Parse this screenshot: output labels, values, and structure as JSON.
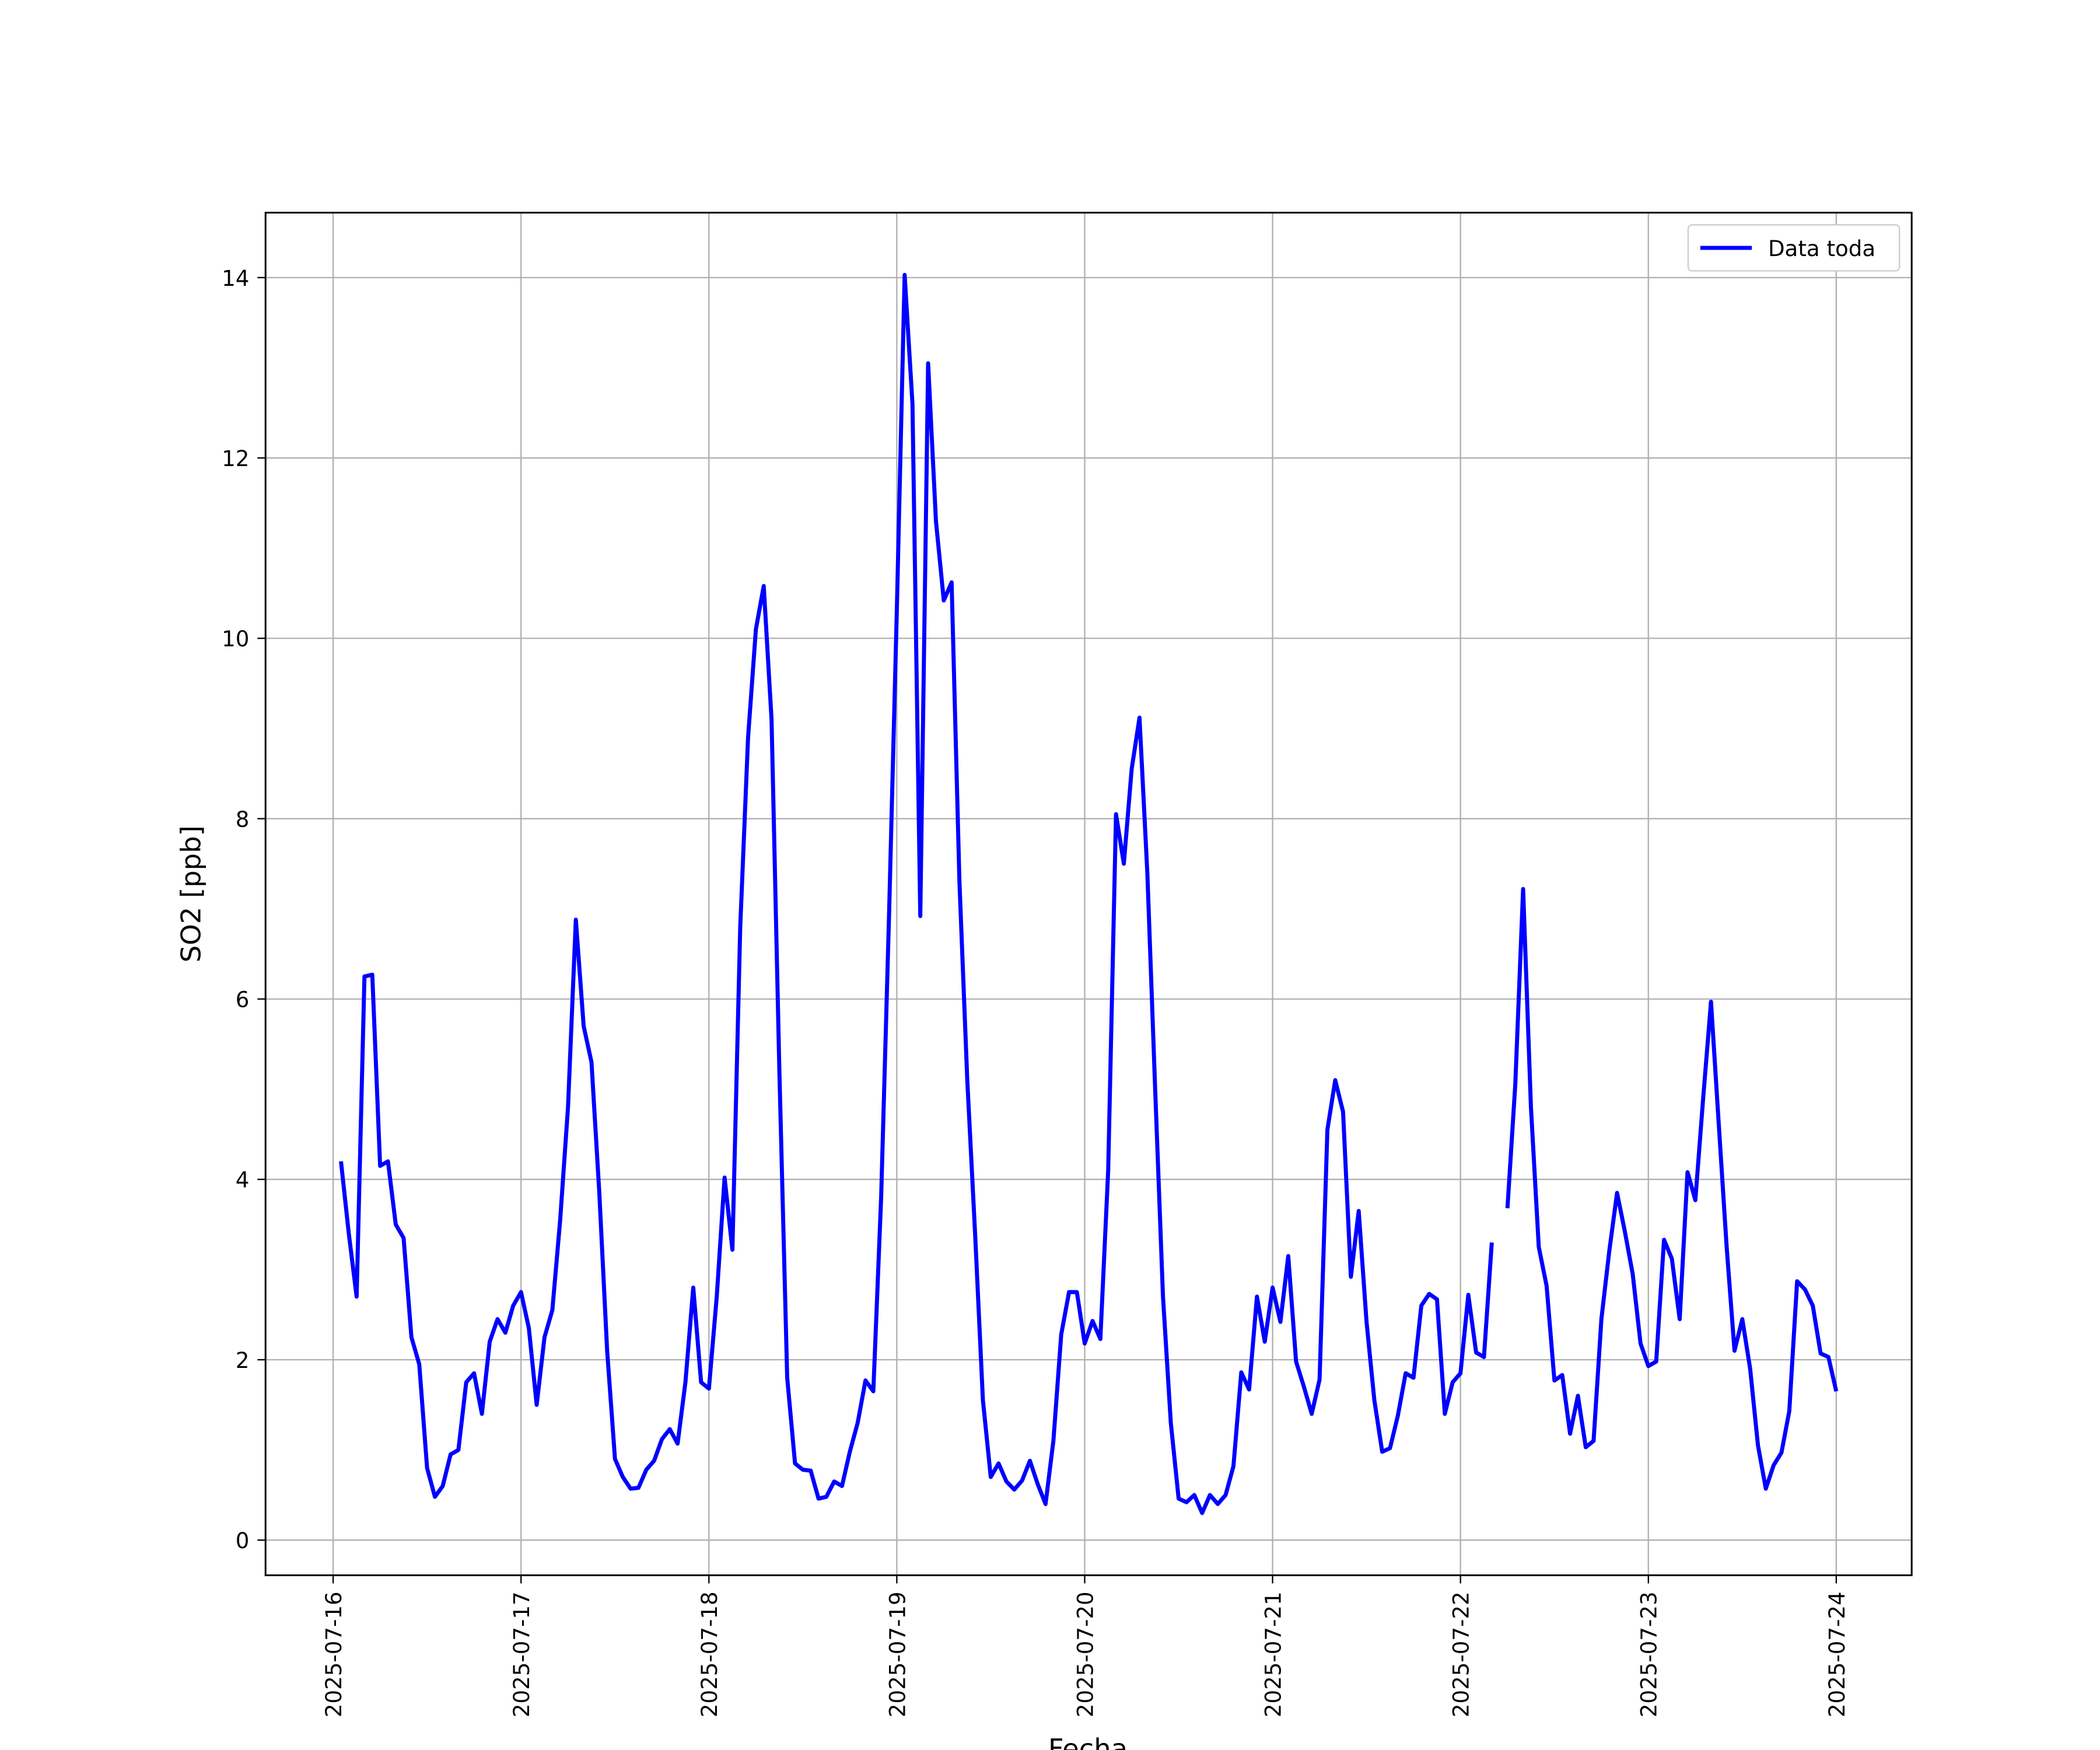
{
  "chart_data": {
    "type": "line",
    "x_label": "Fecha",
    "y_label": "SO2 [ppb]",
    "legend": "upper right",
    "grid": true,
    "xlim": [
      "2025-07-15 15:22",
      "2025-07-24 09:38"
    ],
    "xticks": [
      "2025-07-16",
      "2025-07-17",
      "2025-07-18",
      "2025-07-19",
      "2025-07-20",
      "2025-07-21",
      "2025-07-22",
      "2025-07-23",
      "2025-07-24"
    ],
    "ylim": [
      -0.39,
      14.72
    ],
    "yticks": [
      0,
      2,
      4,
      6,
      8,
      10,
      12,
      14
    ],
    "x": [
      "2025-07-16 01:00",
      "2025-07-16 02:00",
      "2025-07-16 03:00",
      "2025-07-16 04:00",
      "2025-07-16 05:00",
      "2025-07-16 06:00",
      "2025-07-16 07:00",
      "2025-07-16 08:00",
      "2025-07-16 09:00",
      "2025-07-16 10:00",
      "2025-07-16 11:00",
      "2025-07-16 12:00",
      "2025-07-16 13:00",
      "2025-07-16 14:00",
      "2025-07-16 15:00",
      "2025-07-16 16:00",
      "2025-07-16 17:00",
      "2025-07-16 18:00",
      "2025-07-16 19:00",
      "2025-07-16 20:00",
      "2025-07-16 21:00",
      "2025-07-16 22:00",
      "2025-07-16 23:00",
      "2025-07-17 00:00",
      "2025-07-17 01:00",
      "2025-07-17 02:00",
      "2025-07-17 03:00",
      "2025-07-17 04:00",
      "2025-07-17 05:00",
      "2025-07-17 06:00",
      "2025-07-17 07:00",
      "2025-07-17 08:00",
      "2025-07-17 09:00",
      "2025-07-17 10:00",
      "2025-07-17 11:00",
      "2025-07-17 12:00",
      "2025-07-17 13:00",
      "2025-07-17 14:00",
      "2025-07-17 15:00",
      "2025-07-17 16:00",
      "2025-07-17 17:00",
      "2025-07-17 18:00",
      "2025-07-17 19:00",
      "2025-07-17 20:00",
      "2025-07-17 21:00",
      "2025-07-17 22:00",
      "2025-07-17 23:00",
      "2025-07-18 00:00",
      "2025-07-18 01:00",
      "2025-07-18 02:00",
      "2025-07-18 03:00",
      "2025-07-18 04:00",
      "2025-07-18 05:00",
      "2025-07-18 06:00",
      "2025-07-18 07:00",
      "2025-07-18 08:00",
      "2025-07-18 09:00",
      "2025-07-18 10:00",
      "2025-07-18 11:00",
      "2025-07-18 12:00",
      "2025-07-18 13:00",
      "2025-07-18 14:00",
      "2025-07-18 15:00",
      "2025-07-18 16:00",
      "2025-07-18 17:00",
      "2025-07-18 18:00",
      "2025-07-18 19:00",
      "2025-07-18 20:00",
      "2025-07-18 21:00",
      "2025-07-18 22:00",
      "2025-07-18 23:00",
      "2025-07-19 00:00",
      "2025-07-19 01:00",
      "2025-07-19 02:00",
      "2025-07-19 03:00",
      "2025-07-19 04:00",
      "2025-07-19 05:00",
      "2025-07-19 06:00",
      "2025-07-19 07:00",
      "2025-07-19 08:00",
      "2025-07-19 09:00",
      "2025-07-19 10:00",
      "2025-07-19 11:00",
      "2025-07-19 12:00",
      "2025-07-19 13:00",
      "2025-07-19 14:00",
      "2025-07-19 15:00",
      "2025-07-19 16:00",
      "2025-07-19 17:00",
      "2025-07-19 18:00",
      "2025-07-19 19:00",
      "2025-07-19 20:00",
      "2025-07-19 21:00",
      "2025-07-19 22:00",
      "2025-07-19 23:00",
      "2025-07-20 00:00",
      "2025-07-20 01:00",
      "2025-07-20 02:00",
      "2025-07-20 03:00",
      "2025-07-20 04:00",
      "2025-07-20 05:00",
      "2025-07-20 06:00",
      "2025-07-20 07:00",
      "2025-07-20 08:00",
      "2025-07-20 09:00",
      "2025-07-20 10:00",
      "2025-07-20 11:00",
      "2025-07-20 12:00",
      "2025-07-20 13:00",
      "2025-07-20 14:00",
      "2025-07-20 15:00",
      "2025-07-20 16:00",
      "2025-07-20 17:00",
      "2025-07-20 18:00",
      "2025-07-20 19:00",
      "2025-07-20 20:00",
      "2025-07-20 21:00",
      "2025-07-20 22:00",
      "2025-07-20 23:00",
      "2025-07-21 00:00",
      "2025-07-21 01:00",
      "2025-07-21 02:00",
      "2025-07-21 03:00",
      "2025-07-21 04:00",
      "2025-07-21 05:00",
      "2025-07-21 06:00",
      "2025-07-21 07:00",
      "2025-07-21 08:00",
      "2025-07-21 09:00",
      "2025-07-21 10:00",
      "2025-07-21 11:00",
      "2025-07-21 12:00",
      "2025-07-21 13:00",
      "2025-07-21 14:00",
      "2025-07-21 15:00",
      "2025-07-21 16:00",
      "2025-07-21 17:00",
      "2025-07-21 18:00",
      "2025-07-21 19:00",
      "2025-07-21 20:00",
      "2025-07-21 21:00",
      "2025-07-21 22:00",
      "2025-07-21 23:00",
      "2025-07-22 00:00",
      "2025-07-22 01:00",
      "2025-07-22 02:00",
      "2025-07-22 03:00",
      "2025-07-22 04:00",
      "2025-07-22 05:00",
      "2025-07-22 06:00",
      "2025-07-22 07:00",
      "2025-07-22 08:00",
      "2025-07-22 09:00",
      "2025-07-22 10:00",
      "2025-07-22 11:00",
      "2025-07-22 12:00",
      "2025-07-22 13:00",
      "2025-07-22 14:00",
      "2025-07-22 15:00",
      "2025-07-22 16:00",
      "2025-07-22 17:00",
      "2025-07-22 18:00",
      "2025-07-22 19:00",
      "2025-07-22 20:00",
      "2025-07-22 21:00",
      "2025-07-22 22:00",
      "2025-07-22 23:00",
      "2025-07-23 00:00",
      "2025-07-23 01:00",
      "2025-07-23 02:00",
      "2025-07-23 03:00",
      "2025-07-23 04:00",
      "2025-07-23 05:00",
      "2025-07-23 06:00",
      "2025-07-23 07:00",
      "2025-07-23 08:00",
      "2025-07-23 09:00",
      "2025-07-23 10:00",
      "2025-07-23 11:00",
      "2025-07-23 12:00",
      "2025-07-23 13:00",
      "2025-07-23 14:00",
      "2025-07-23 15:00",
      "2025-07-23 16:00",
      "2025-07-23 17:00",
      "2025-07-23 18:00",
      "2025-07-23 19:00",
      "2025-07-23 20:00",
      "2025-07-23 21:00",
      "2025-07-23 22:00",
      "2025-07-23 23:00",
      "2025-07-24 00:00"
    ],
    "series": [
      {
        "name": "Data toda",
        "color": "#0000ff",
        "values": [
          4.2,
          3.4,
          2.7,
          6.25,
          6.27,
          4.15,
          4.2,
          3.5,
          3.35,
          2.25,
          1.95,
          0.8,
          0.48,
          0.6,
          0.95,
          1.0,
          1.75,
          1.85,
          1.4,
          2.2,
          2.45,
          2.3,
          2.6,
          2.75,
          2.35,
          1.5,
          2.25,
          2.55,
          3.55,
          4.8,
          6.88,
          5.7,
          5.3,
          3.85,
          2.1,
          0.9,
          0.7,
          0.57,
          0.58,
          0.78,
          0.88,
          1.12,
          1.23,
          1.07,
          1.75,
          2.8,
          1.75,
          1.68,
          2.7,
          4.02,
          3.22,
          6.8,
          8.9,
          10.1,
          10.58,
          9.1,
          5.2,
          1.8,
          0.85,
          0.78,
          0.77,
          0.46,
          0.48,
          0.65,
          0.6,
          0.98,
          1.3,
          1.77,
          1.65,
          3.8,
          6.9,
          10.3,
          14.03,
          12.6,
          6.92,
          13.05,
          11.3,
          10.42,
          10.62,
          7.3,
          5.1,
          3.4,
          1.55,
          0.7,
          0.85,
          0.65,
          0.56,
          0.66,
          0.88,
          0.62,
          0.4,
          1.1,
          2.28,
          2.75,
          2.75,
          2.18,
          2.43,
          2.23,
          4.1,
          8.05,
          7.5,
          8.55,
          9.12,
          7.4,
          5.0,
          2.7,
          1.3,
          0.46,
          0.42,
          0.5,
          0.3,
          0.5,
          0.4,
          0.5,
          0.82,
          1.86,
          1.67,
          2.7,
          2.2,
          2.8,
          2.42,
          3.15,
          1.98,
          1.7,
          1.4,
          1.78,
          4.55,
          5.1,
          4.75,
          2.92,
          3.65,
          2.42,
          1.55,
          0.98,
          1.02,
          1.38,
          1.85,
          1.8,
          2.6,
          2.73,
          2.67,
          1.4,
          1.75,
          1.85,
          2.72,
          2.08,
          2.03,
          3.3,
          null,
          3.68,
          5.05,
          7.22,
          4.8,
          3.25,
          2.82,
          1.77,
          1.83,
          1.18,
          1.6,
          1.03,
          1.1,
          2.45,
          3.2,
          3.85,
          3.42,
          2.95,
          2.18,
          1.93,
          1.98,
          3.33,
          3.12,
          2.45,
          4.08,
          3.77,
          4.9,
          5.97,
          4.6,
          3.25,
          2.1,
          2.45,
          1.9,
          1.05,
          0.57,
          0.83,
          0.97,
          1.43,
          2.87,
          2.78,
          2.6,
          2.07,
          2.03,
          1.65
        ]
      }
    ]
  }
}
